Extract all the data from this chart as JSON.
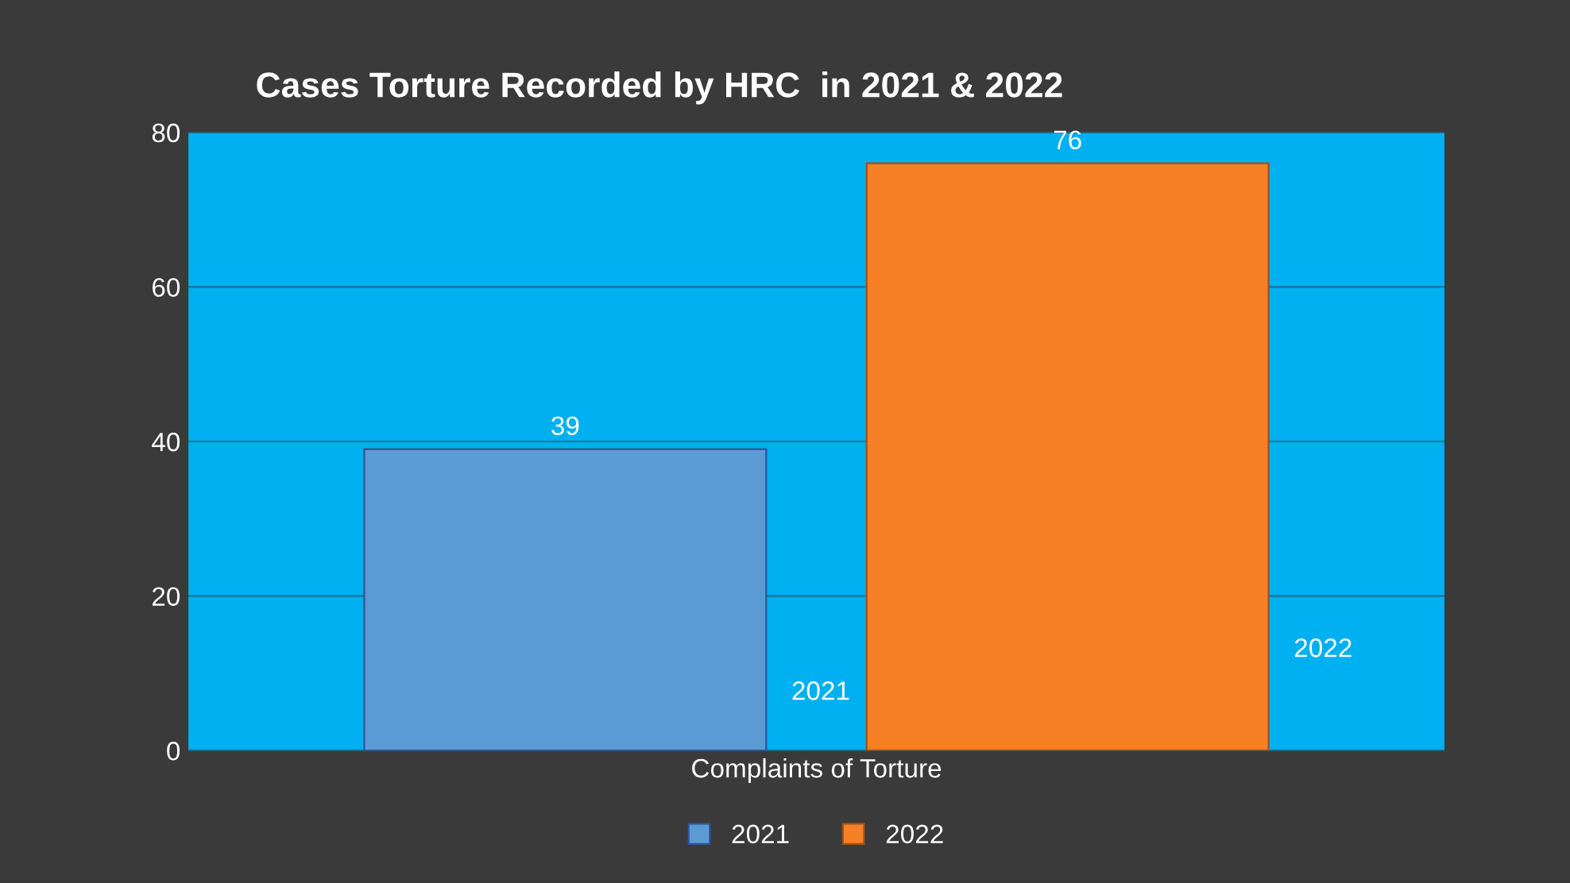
{
  "chart_data": {
    "type": "bar",
    "title": "Cases Torture Recorded by HRC  in 2021 & 2022",
    "categories": [
      "Complaints of Torture"
    ],
    "series": [
      {
        "name": "2021",
        "color": "#5b9bd5",
        "values": [
          39
        ]
      },
      {
        "name": "2022",
        "color": "#f58025",
        "values": [
          76
        ]
      }
    ],
    "ylim": [
      0,
      80
    ],
    "yticks": [
      0,
      20,
      40,
      60,
      80
    ],
    "grid": "y",
    "data_labels": true,
    "legend": "bottom"
  }
}
